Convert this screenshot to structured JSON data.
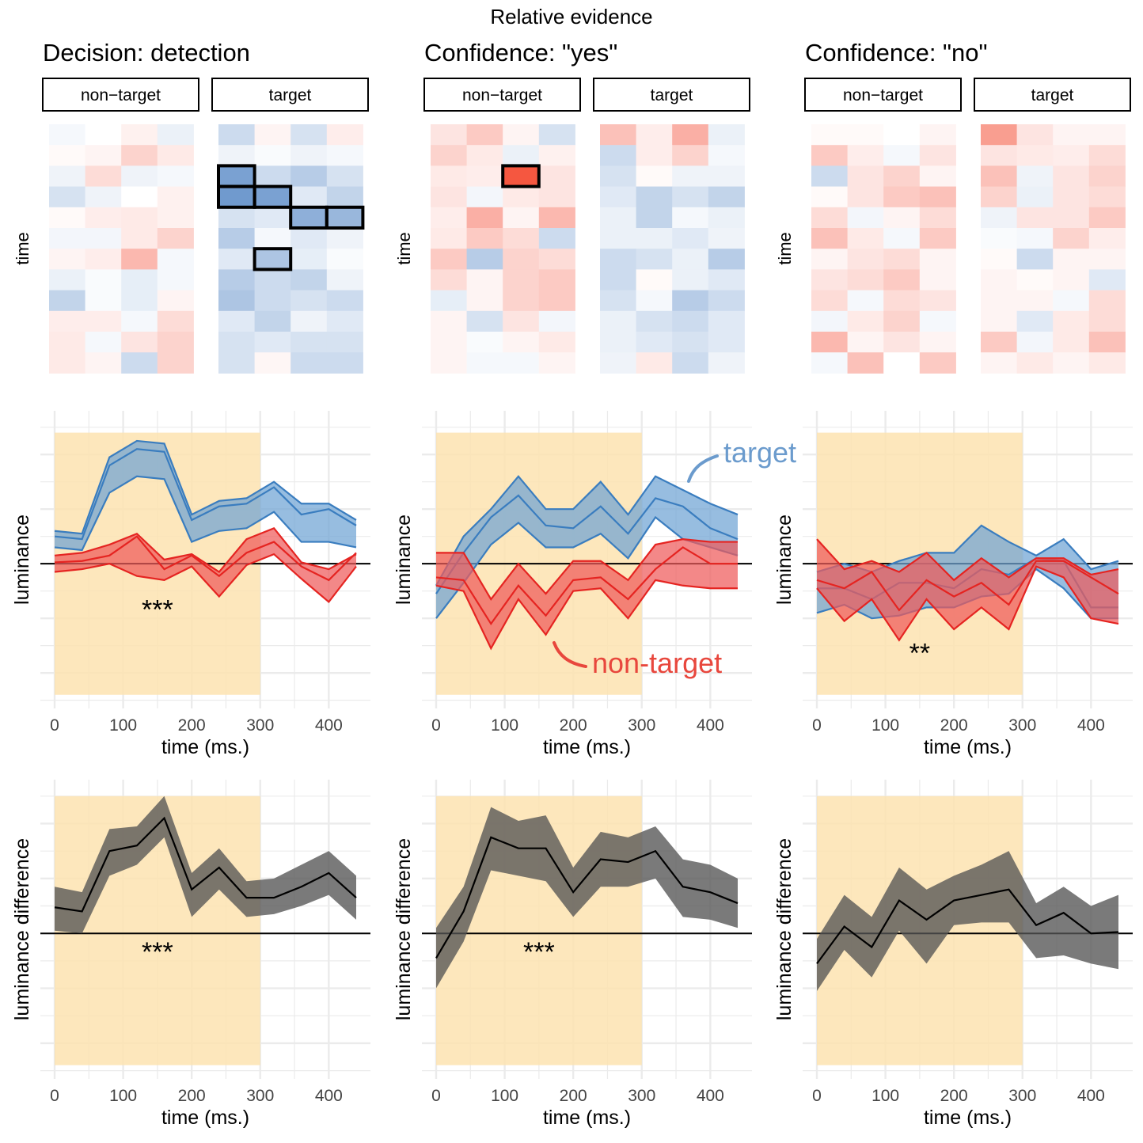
{
  "figure": {
    "title": "Relative evidence",
    "colors": {
      "target": "#3a7dbf",
      "target_fill": "#6fa3d4",
      "nontarget": "#e52421",
      "nontarget_fill": "#ef5a5a",
      "diff_fill": "#555555",
      "window": "#fde3b0",
      "grid": "#ebebeb",
      "target_annotation": "#6b9bcd",
      "nontarget_annotation": "#e8473d"
    },
    "annotations": {
      "target_label": "target",
      "nontarget_label": "non-target"
    }
  },
  "chart_data": [
    {
      "type": "heatmap",
      "panel_title": "Decision: detection",
      "ylabel": "time",
      "facets": [
        "non−target",
        "target"
      ],
      "rows": 12,
      "cols": 4,
      "values": [
        [
          [
            -0.05,
            0,
            0.08,
            -0.1
          ],
          [
            0.03,
            0.06,
            0.25,
            0.12
          ],
          [
            -0.08,
            0.2,
            -0.08,
            -0.05
          ],
          [
            -0.2,
            -0.08,
            0,
            0.08
          ],
          [
            0.03,
            0.1,
            0.12,
            0.08
          ],
          [
            -0.06,
            -0.06,
            0.12,
            0.25
          ],
          [
            0.06,
            0.1,
            0.4,
            -0.05
          ],
          [
            -0.1,
            -0.03,
            -0.12,
            -0.05
          ],
          [
            -0.3,
            -0.03,
            -0.12,
            0.06
          ],
          [
            0.1,
            0.1,
            -0.05,
            0.2
          ],
          [
            0.12,
            -0.05,
            0.15,
            0.25
          ],
          [
            0.12,
            0.06,
            -0.25,
            0.25
          ]
        ],
        [
          [
            -0.25,
            0.06,
            -0.2,
            0.1
          ],
          [
            -0.08,
            -0.03,
            -0.08,
            -0.05
          ],
          [
            -0.65,
            -0.25,
            -0.35,
            -0.2
          ],
          [
            -0.7,
            -0.65,
            -0.15,
            -0.3
          ],
          [
            -0.2,
            -0.15,
            -0.55,
            -0.5
          ],
          [
            -0.35,
            -0.05,
            -0.15,
            -0.08
          ],
          [
            -0.15,
            -0.4,
            -0.12,
            -0.03
          ],
          [
            -0.35,
            -0.25,
            -0.3,
            -0.08
          ],
          [
            -0.4,
            -0.25,
            -0.2,
            -0.25
          ],
          [
            -0.15,
            -0.3,
            -0.08,
            -0.15
          ],
          [
            -0.2,
            -0.15,
            -0.2,
            -0.2
          ],
          [
            -0.2,
            0.05,
            -0.25,
            -0.25
          ]
        ]
      ],
      "highlighted_cells": [
        {
          "facet": 1,
          "row": 2,
          "col": 0
        },
        {
          "facet": 1,
          "row": 3,
          "col": 0
        },
        {
          "facet": 1,
          "row": 3,
          "col": 1
        },
        {
          "facet": 1,
          "row": 4,
          "col": 2
        },
        {
          "facet": 1,
          "row": 4,
          "col": 3
        },
        {
          "facet": 1,
          "row": 6,
          "col": 1
        }
      ]
    },
    {
      "type": "heatmap",
      "panel_title": "Confidence: \"yes\"",
      "ylabel": "time",
      "facets": [
        "non−target",
        "target"
      ],
      "rows": 12,
      "cols": 4,
      "values": [
        [
          [
            0.15,
            0.3,
            0.06,
            -0.2
          ],
          [
            0.25,
            0.12,
            -0.1,
            0.08
          ],
          [
            0.12,
            0.1,
            0.95,
            0.15
          ],
          [
            0.15,
            -0.06,
            0.12,
            0.15
          ],
          [
            0.1,
            0.45,
            0.06,
            0.4
          ],
          [
            0.12,
            0.3,
            0.2,
            -0.25
          ],
          [
            0.3,
            -0.35,
            0.25,
            0.2
          ],
          [
            0.2,
            0.06,
            0.25,
            0.3
          ],
          [
            -0.12,
            0.06,
            0.25,
            0.3
          ],
          [
            0.06,
            -0.2,
            0.15,
            -0.06
          ],
          [
            0.06,
            -0.03,
            0.06,
            0.12
          ],
          [
            0.06,
            -0.05,
            -0.05,
            0.06
          ]
        ],
        [
          [
            0.35,
            0.1,
            0.45,
            -0.1
          ],
          [
            -0.25,
            0.1,
            0.25,
            -0.05
          ],
          [
            -0.2,
            0.03,
            -0.08,
            -0.08
          ],
          [
            -0.15,
            -0.3,
            -0.2,
            -0.3
          ],
          [
            -0.1,
            -0.3,
            -0.05,
            -0.1
          ],
          [
            -0.1,
            -0.1,
            -0.15,
            -0.08
          ],
          [
            -0.25,
            -0.2,
            -0.1,
            -0.35
          ],
          [
            -0.25,
            0.03,
            -0.1,
            -0.15
          ],
          [
            -0.2,
            -0.05,
            -0.35,
            -0.25
          ],
          [
            -0.1,
            -0.2,
            -0.25,
            -0.15
          ],
          [
            -0.1,
            -0.15,
            -0.2,
            -0.15
          ],
          [
            -0.08,
            0.12,
            -0.25,
            -0.08
          ]
        ]
      ],
      "highlighted_cells": [
        {
          "facet": 0,
          "row": 2,
          "col": 2
        }
      ]
    },
    {
      "type": "heatmap",
      "panel_title": "Confidence: \"no\"",
      "ylabel": "time",
      "facets": [
        "non−target",
        "target"
      ],
      "rows": 12,
      "cols": 4,
      "values": [
        [
          [
            0.03,
            0.03,
            0,
            0.06
          ],
          [
            0.3,
            0.1,
            -0.05,
            0.15
          ],
          [
            -0.25,
            0.15,
            0.25,
            0.06
          ],
          [
            0.03,
            0.15,
            0.3,
            0.35
          ],
          [
            0.2,
            -0.06,
            0.06,
            0.2
          ],
          [
            0.35,
            0.12,
            -0.05,
            0.3
          ],
          [
            0.06,
            0.15,
            0.2,
            0.06
          ],
          [
            0.15,
            0.2,
            0.3,
            0.06
          ],
          [
            0.2,
            -0.05,
            0.2,
            0.15
          ],
          [
            -0.06,
            0.12,
            0.25,
            -0.05
          ],
          [
            0.4,
            0.06,
            0.15,
            0.06
          ],
          [
            -0.05,
            0.35,
            0,
            0.3
          ]
        ],
        [
          [
            0.55,
            0.15,
            0.06,
            0.06
          ],
          [
            0.15,
            0.12,
            0.1,
            0.2
          ],
          [
            0.35,
            -0.08,
            0.15,
            0.25
          ],
          [
            0.25,
            -0.1,
            0.15,
            0.2
          ],
          [
            -0.08,
            0.15,
            0.15,
            0.3
          ],
          [
            -0.03,
            -0.05,
            0.25,
            0.1
          ],
          [
            0.03,
            -0.25,
            0.06,
            0.06
          ],
          [
            0.06,
            0.03,
            0.06,
            -0.15
          ],
          [
            0.06,
            0.06,
            -0.05,
            0.2
          ],
          [
            0.06,
            -0.15,
            0.12,
            0.2
          ],
          [
            0.3,
            -0.06,
            0.12,
            0.35
          ],
          [
            0.06,
            0.12,
            0.06,
            0.12
          ]
        ]
      ],
      "highlighted_cells": []
    },
    {
      "type": "line",
      "ylabel": "luminance",
      "xlabel": "time (ms.)",
      "xlim": [
        -20,
        460
      ],
      "ylim": [
        -5.3,
        5.6
      ],
      "x_ticks": [
        0,
        100,
        200,
        300,
        400
      ],
      "window": [
        0,
        300
      ],
      "window_ylim": [
        -4.8,
        4.8
      ],
      "significance": "***",
      "significance_at": [
        150,
        -1.75
      ],
      "x": [
        0,
        40,
        80,
        120,
        160,
        200,
        240,
        280,
        320,
        360,
        400,
        440
      ],
      "series": [
        {
          "name": "target",
          "mean": [
            1,
            0.9,
            3.6,
            4.2,
            4.1,
            1.6,
            2.1,
            2.2,
            2.8,
            1.8,
            2,
            1.4
          ],
          "lower": [
            0.6,
            0.5,
            2.6,
            3.2,
            3.1,
            0.8,
            1.2,
            1.3,
            1.9,
            0.8,
            0.8,
            0.6
          ],
          "upper": [
            1.2,
            1.1,
            3.9,
            4.5,
            4.4,
            1.8,
            2.3,
            2.4,
            3,
            2.2,
            2.2,
            1.6
          ]
        },
        {
          "name": "non-target",
          "mean": [
            0.05,
            0.1,
            0.3,
            1,
            -0.2,
            0.3,
            -0.45,
            0.4,
            0.8,
            -0.1,
            -0.6,
            0.4
          ],
          "lower": [
            -0.3,
            -0.2,
            0,
            -0.45,
            -0.6,
            -0.1,
            -1.2,
            -0.05,
            0.35,
            -0.55,
            -1.4,
            -0.1
          ],
          "upper": [
            0.3,
            0.4,
            0.7,
            1.1,
            0.15,
            0.35,
            -0.3,
            0.9,
            1.3,
            0.05,
            -0.2,
            0.35
          ]
        }
      ]
    },
    {
      "type": "line",
      "ylabel": "luminance",
      "xlabel": "time (ms.)",
      "xlim": [
        -20,
        460
      ],
      "ylim": [
        -5.3,
        5.6
      ],
      "x_ticks": [
        0,
        100,
        200,
        300,
        400
      ],
      "window": [
        0,
        300
      ],
      "window_ylim": [
        -4.8,
        4.8
      ],
      "significance": "",
      "significance_at": [
        0,
        0
      ],
      "x": [
        0,
        40,
        80,
        120,
        160,
        200,
        240,
        280,
        320,
        360,
        400,
        440
      ],
      "series": [
        {
          "name": "target",
          "mean": [
            -1.1,
            0.4,
            1.7,
            2.5,
            1.4,
            1.3,
            2.1,
            1.1,
            2.4,
            2.1,
            1.3,
            0.9
          ],
          "lower": [
            -2,
            -0.7,
            0.7,
            1.5,
            0.6,
            0.6,
            1.1,
            0.2,
            1.7,
            0.9,
            0.6,
            0.3
          ],
          "upper": [
            -0.8,
            1,
            2,
            3.2,
            2,
            2,
            3,
            1.8,
            3.2,
            2.7,
            2.2,
            1.8
          ]
        },
        {
          "name": "non-target",
          "mean": [
            -0.5,
            -0.6,
            -2.2,
            -0.8,
            -1.9,
            -0.6,
            -0.5,
            -1.3,
            -0.2,
            0.6,
            0,
            0
          ],
          "lower": [
            -0.8,
            -1,
            -3.1,
            -1.3,
            -2.6,
            -1,
            -0.9,
            -2,
            -0.6,
            -0.8,
            -0.9,
            -0.9
          ],
          "upper": [
            0.4,
            0.4,
            -1.3,
            0,
            -1.1,
            0.1,
            0.1,
            -0.6,
            0.7,
            0.9,
            0.8,
            0.8
          ]
        }
      ]
    },
    {
      "type": "line",
      "ylabel": "luminance",
      "xlabel": "time (ms.)",
      "xlim": [
        -20,
        460
      ],
      "ylim": [
        -5.3,
        5.6
      ],
      "x_ticks": [
        0,
        100,
        200,
        300,
        400
      ],
      "window": [
        0,
        300
      ],
      "window_ylim": [
        -4.8,
        4.8
      ],
      "significance": "**",
      "significance_at": [
        150,
        -3.35
      ],
      "x": [
        0,
        40,
        80,
        120,
        160,
        200,
        240,
        280,
        320,
        360,
        400,
        440
      ],
      "series": [
        {
          "name": "target",
          "mean": [
            -0.9,
            -0.9,
            -1.3,
            -0.7,
            -0.7,
            -0.9,
            -0.2,
            -0.4,
            0.2,
            0.1,
            -1.6,
            -1.6
          ],
          "lower": [
            -1.8,
            -1.5,
            -2,
            -1.9,
            -1.6,
            -1.6,
            -1.2,
            -1.1,
            -0.2,
            -0.9,
            -2,
            -2
          ],
          "upper": [
            -0.3,
            0,
            -0.3,
            0.1,
            0.4,
            0.4,
            1.4,
            0.8,
            0.3,
            0.9,
            -0.2,
            0.1
          ]
        },
        {
          "name": "non-target",
          "mean": [
            -0.6,
            -0.9,
            -0.3,
            -1.7,
            -0.6,
            -1.2,
            -0.7,
            -1.5,
            0.1,
            0.1,
            -0.5,
            -1.1
          ],
          "lower": [
            -0.9,
            -2.1,
            -1.3,
            -2.8,
            -1.3,
            -2.4,
            -1.6,
            -2.4,
            -0.1,
            -0.5,
            -2,
            -2.2
          ],
          "upper": [
            0.9,
            -0.2,
            0.1,
            -0.3,
            0.4,
            -0.6,
            0.2,
            -0.5,
            0.2,
            0.2,
            -0.4,
            -0.2
          ]
        }
      ]
    },
    {
      "type": "line",
      "ylabel": "luminance difference",
      "xlabel": "time (ms.)",
      "xlim": [
        -20,
        460
      ],
      "ylim": [
        -5.3,
        5.6
      ],
      "x_ticks": [
        0,
        100,
        200,
        300,
        400
      ],
      "window": [
        0,
        300
      ],
      "window_ylim": [
        -4.8,
        5.0
      ],
      "significance": "***",
      "significance_at": [
        150,
        -0.75
      ],
      "x": [
        0,
        40,
        80,
        120,
        160,
        200,
        240,
        280,
        320,
        360,
        400,
        440
      ],
      "series": [
        {
          "name": "difference",
          "mean": [
            0.95,
            0.8,
            3,
            3.2,
            4.2,
            1.6,
            2.4,
            1.3,
            1.3,
            1.7,
            2.2,
            1.3
          ],
          "lower": [
            0.1,
            0,
            2.1,
            2.5,
            3.5,
            0.6,
            1.6,
            0.6,
            0.7,
            1,
            1.4,
            0.5
          ],
          "upper": [
            1.7,
            1.5,
            3.8,
            3.9,
            5,
            2.2,
            3.1,
            1.9,
            2,
            2.5,
            3,
            2.1
          ]
        }
      ]
    },
    {
      "type": "line",
      "ylabel": "luminance difference",
      "xlabel": "time (ms.)",
      "xlim": [
        -20,
        460
      ],
      "ylim": [
        -5.3,
        5.6
      ],
      "x_ticks": [
        0,
        100,
        200,
        300,
        400
      ],
      "window": [
        0,
        300
      ],
      "window_ylim": [
        -4.8,
        5.0
      ],
      "significance": "***",
      "significance_at": [
        150,
        -0.75
      ],
      "x": [
        0,
        40,
        80,
        120,
        160,
        200,
        240,
        280,
        320,
        360,
        400,
        440
      ],
      "series": [
        {
          "name": "difference",
          "mean": [
            -0.9,
            0.8,
            3.5,
            3.1,
            3.1,
            1.5,
            2.7,
            2.6,
            3,
            1.7,
            1.5,
            1.1
          ],
          "lower": [
            -2,
            -0.3,
            2.3,
            2.1,
            1.9,
            0.6,
            1.7,
            1.7,
            2,
            0.6,
            0.5,
            0.2
          ],
          "upper": [
            0.2,
            1.7,
            4.6,
            4.1,
            4.3,
            2.4,
            3.7,
            3.5,
            3.9,
            2.7,
            2.5,
            2
          ]
        }
      ]
    },
    {
      "type": "line",
      "ylabel": "luminance difference",
      "xlabel": "time (ms.)",
      "xlim": [
        -20,
        460
      ],
      "ylim": [
        -5.3,
        5.6
      ],
      "x_ticks": [
        0,
        100,
        200,
        300,
        400
      ],
      "window": [
        0,
        300
      ],
      "window_ylim": [
        -4.8,
        5.0
      ],
      "significance": "",
      "significance_at": [
        0,
        0
      ],
      "x": [
        0,
        40,
        80,
        120,
        160,
        200,
        240,
        280,
        320,
        360,
        400,
        440
      ],
      "series": [
        {
          "name": "difference",
          "mean": [
            -1.1,
            0.25,
            -0.5,
            1.2,
            0.5,
            1.2,
            1.4,
            1.6,
            0.3,
            0.75,
            0,
            0.05
          ],
          "lower": [
            -2.1,
            -0.6,
            -1.6,
            0.1,
            -1.1,
            0.3,
            0.4,
            0.4,
            -0.9,
            -0.8,
            -1.1,
            -1.3
          ],
          "upper": [
            -0.2,
            1.4,
            0.6,
            2.4,
            1.6,
            2.1,
            2.5,
            3,
            1.1,
            1.7,
            1,
            1.4
          ]
        }
      ]
    }
  ]
}
